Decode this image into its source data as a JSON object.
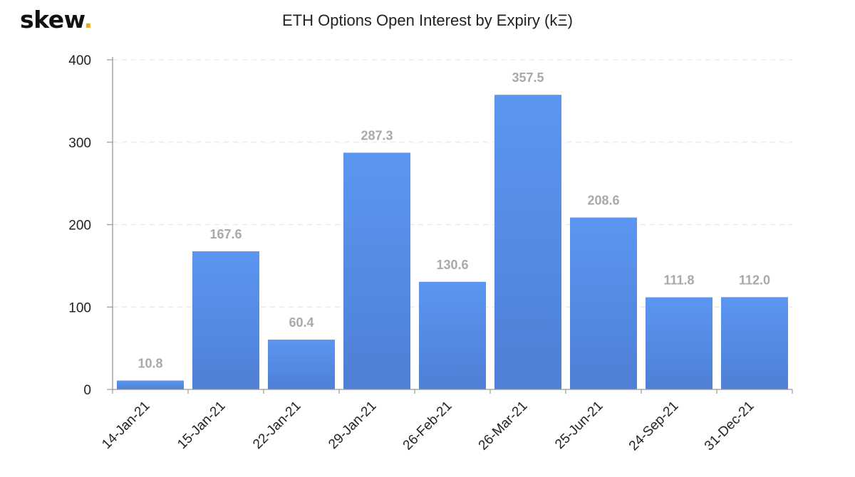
{
  "brand": {
    "name": "skew",
    "dot": ".",
    "dot_color": "#f0a71b"
  },
  "chart_data": {
    "type": "bar",
    "title": "ETH Options Open Interest by Expiry (kΞ)",
    "categories": [
      "14-Jan-21",
      "15-Jan-21",
      "22-Jan-21",
      "29-Jan-21",
      "26-Feb-21",
      "26-Mar-21",
      "25-Jun-21",
      "24-Sep-21",
      "31-Dec-21"
    ],
    "values": [
      10.8,
      167.6,
      60.4,
      287.3,
      130.6,
      357.5,
      208.6,
      111.8,
      112.0
    ],
    "data_labels": [
      "10.8",
      "167.6",
      "60.4",
      "287.3",
      "130.6",
      "357.5",
      "208.6",
      "111.8",
      "112.0"
    ],
    "ylim": [
      0,
      400
    ],
    "yticks": [
      0,
      100,
      200,
      300,
      400
    ],
    "xlabel": "",
    "ylabel": "",
    "grid": true,
    "legend": "none",
    "bar_color_top": "#5b96f2",
    "bar_color_bottom": "#4f7fd6",
    "label_color": "#a9a9a9"
  }
}
